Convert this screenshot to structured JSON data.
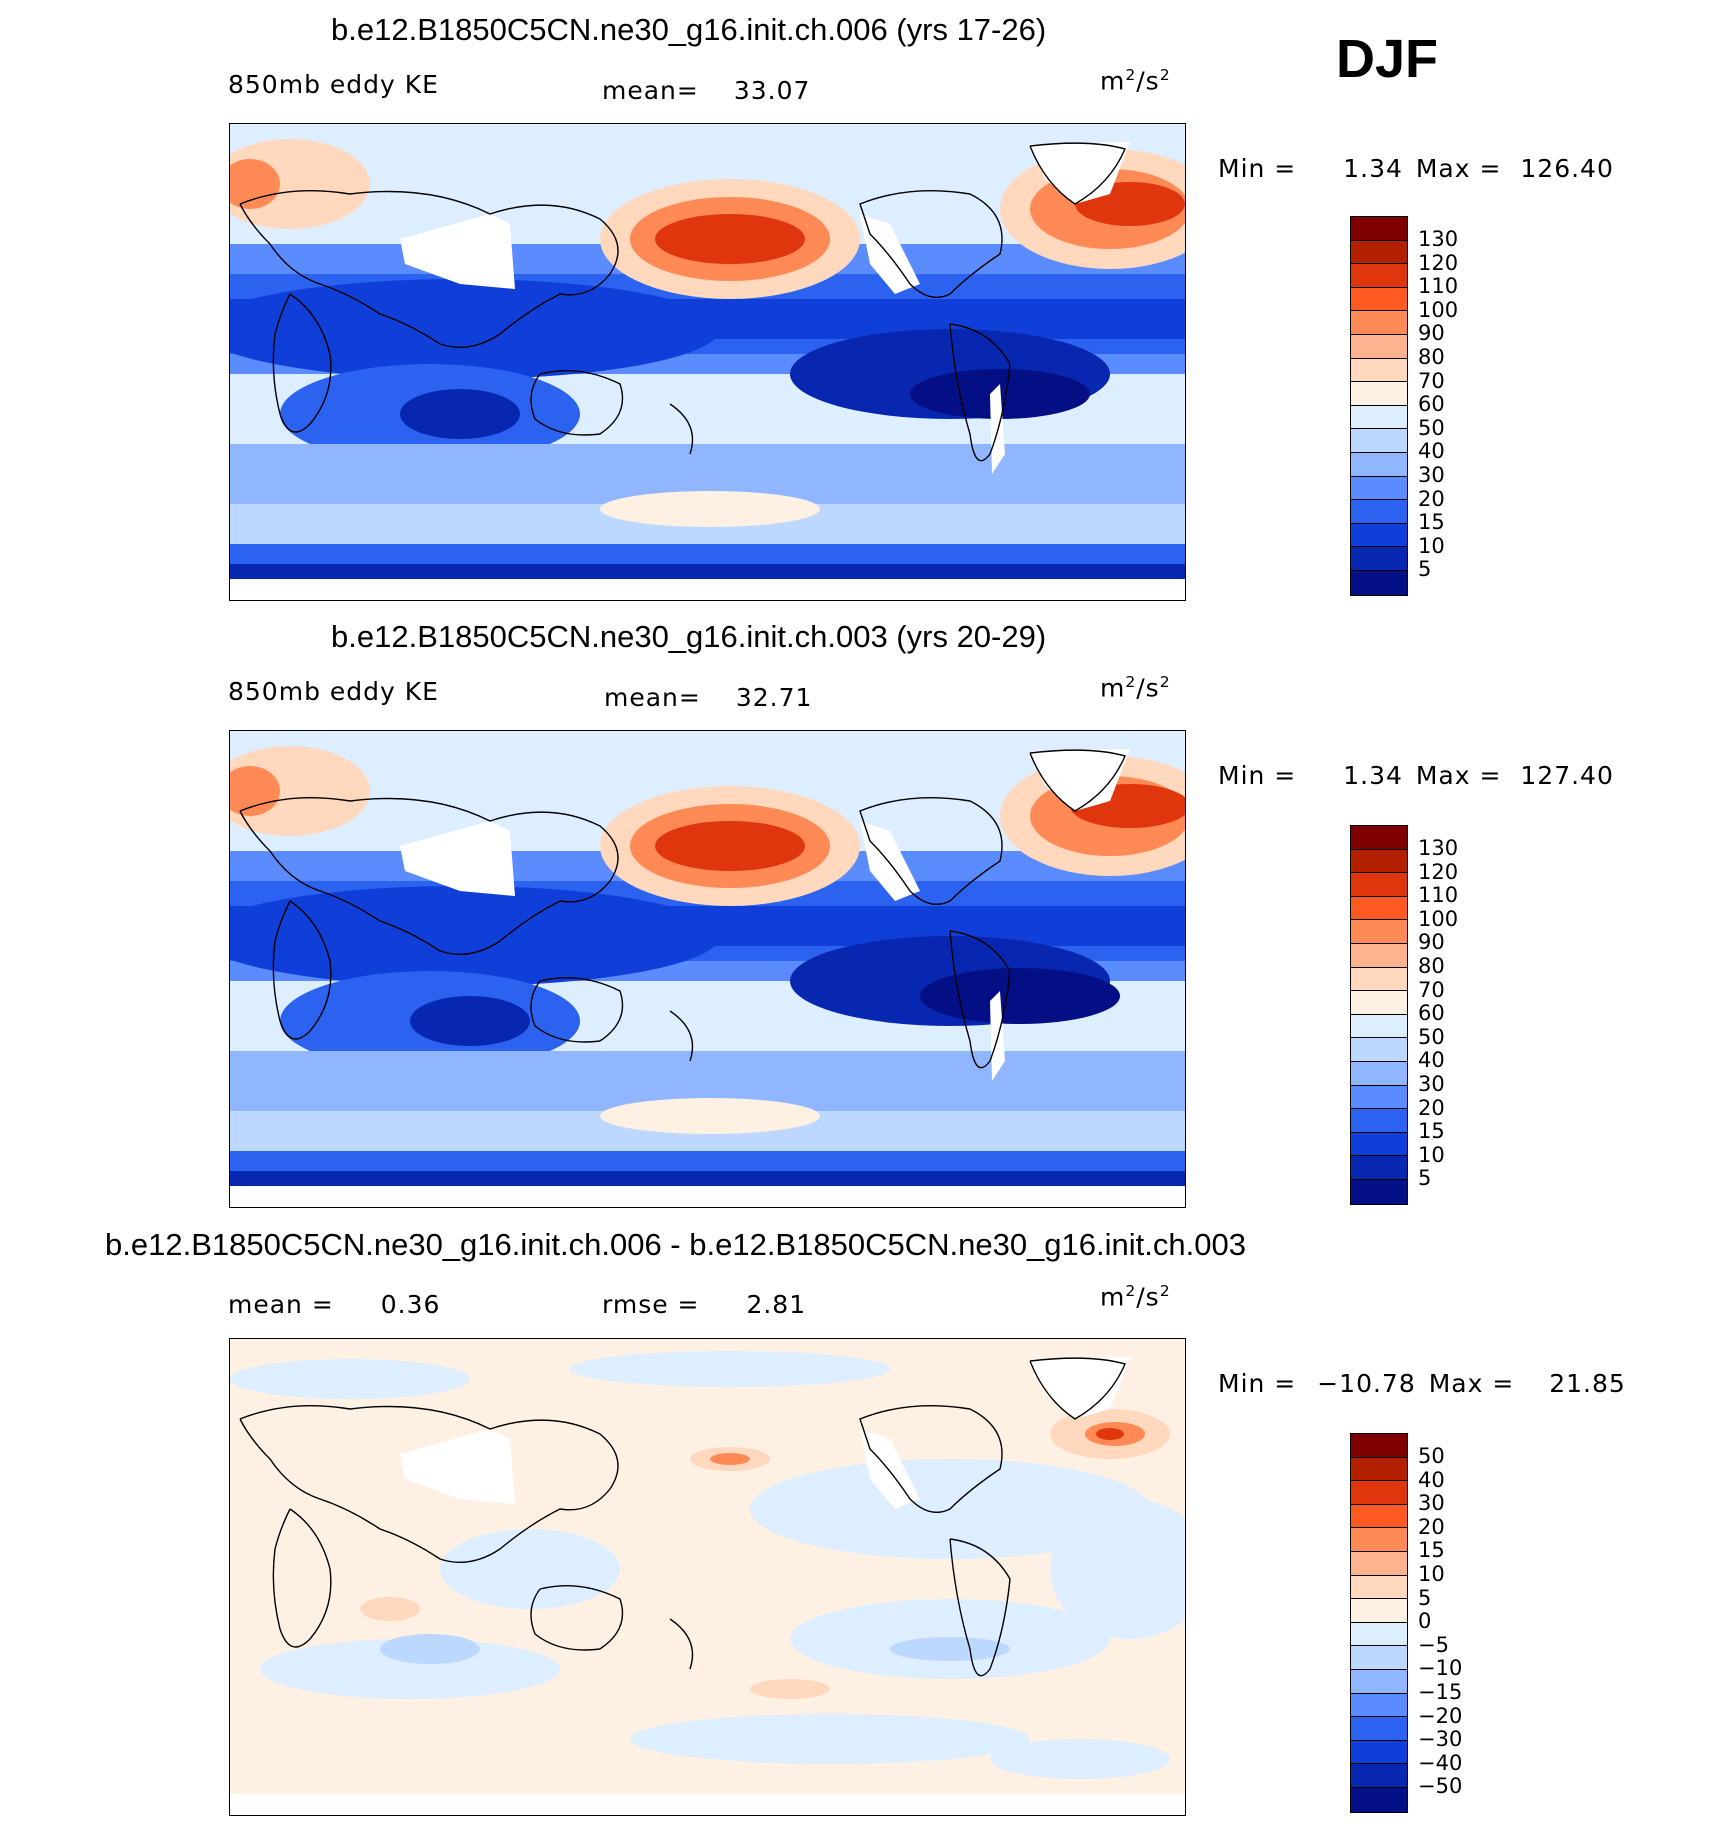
{
  "season": "DJF",
  "units_base": "m",
  "units_exp": "2",
  "units_base2": "/s",
  "units_exp2": "2",
  "variable": "850mb eddy KE",
  "panels": [
    {
      "title": "b.e12.B1850C5CN.ne30_g16.init.ch.006 (yrs 17-26)",
      "left_label": "850mb eddy KE",
      "mean_label": "mean=",
      "mean_value": "33.07",
      "min_label": "Min =",
      "min_value": "1.34",
      "max_label": "Max =",
      "max_value": "126.40",
      "colorbar_labels": [
        "130",
        "120",
        "110",
        "100",
        "90",
        "80",
        "70",
        "60",
        "50",
        "40",
        "30",
        "20",
        "15",
        "10",
        "5"
      ]
    },
    {
      "title": "b.e12.B1850C5CN.ne30_g16.init.ch.003 (yrs 20-29)",
      "left_label": "850mb eddy KE",
      "mean_label": "mean=",
      "mean_value": "32.71",
      "min_label": "Min =",
      "min_value": "1.34",
      "max_label": "Max =",
      "max_value": "127.40",
      "colorbar_labels": [
        "130",
        "120",
        "110",
        "100",
        "90",
        "80",
        "70",
        "60",
        "50",
        "40",
        "30",
        "20",
        "15",
        "10",
        "5"
      ]
    },
    {
      "title": "b.e12.B1850C5CN.ne30_g16.init.ch.006 - b.e12.B1850C5CN.ne30_g16.init.ch.003",
      "mean_label": "mean =",
      "mean_value": "0.36",
      "rmse_label": "rmse =",
      "rmse_value": "2.81",
      "min_label": "Min =",
      "min_value": "−10.78",
      "max_label": "Max =",
      "max_value": "21.85",
      "colorbar_labels": [
        "50",
        "40",
        "30",
        "20",
        "15",
        "10",
        "5",
        "0",
        "−5",
        "−10",
        "−15",
        "−20",
        "−30",
        "−40",
        "−50"
      ]
    }
  ],
  "colors": {
    "abs_scale": [
      "#7f0000",
      "#b22000",
      "#e0360e",
      "#ff5a22",
      "#ff8a55",
      "#ffb290",
      "#ffd8be",
      "#fff0e4",
      "#dceeff",
      "#bcd8ff",
      "#8fb6ff",
      "#5a8cff",
      "#2c62f0",
      "#0f3fd8",
      "#0827b0",
      "#050f85"
    ],
    "diff_scale": [
      "#7f0000",
      "#b22000",
      "#e0360e",
      "#ff5a22",
      "#ff8a55",
      "#ffb290",
      "#ffd8be",
      "#fff0e4",
      "#dceeff",
      "#bcd8ff",
      "#8fb6ff",
      "#5a8cff",
      "#2c62f0",
      "#0f3fd8",
      "#0827b0",
      "#050f85"
    ]
  }
}
